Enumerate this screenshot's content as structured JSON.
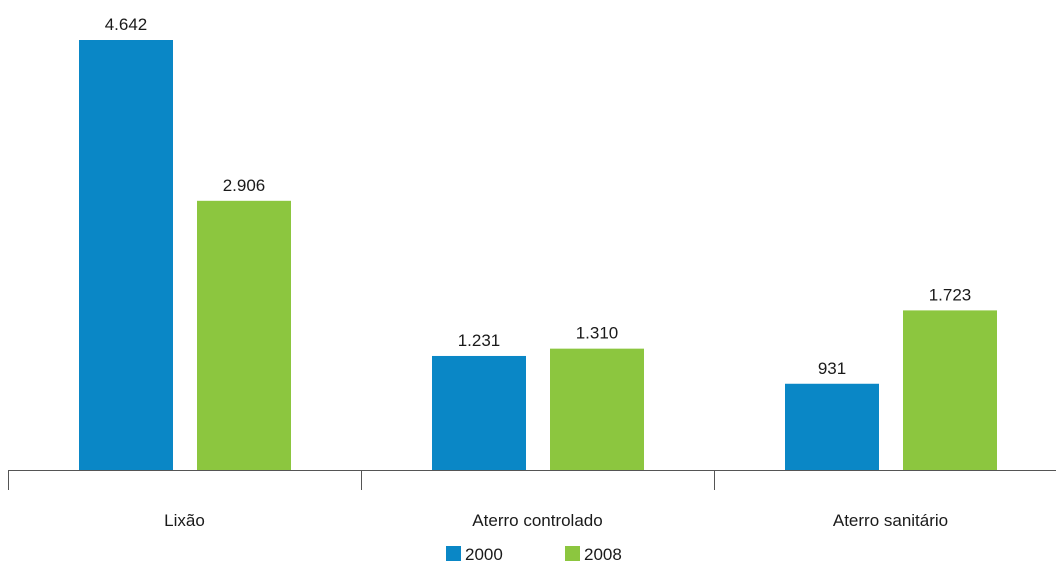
{
  "chart_data": {
    "type": "bar",
    "categories": [
      "Lixão",
      "Aterro controlado",
      "Aterro sanitário"
    ],
    "series": [
      {
        "name": "2000",
        "color": "#0a87c6",
        "values": [
          4642,
          1231,
          931
        ],
        "value_labels": [
          "4.642",
          "1.231",
          "931"
        ]
      },
      {
        "name": "2008",
        "color": "#8cc63f",
        "values": [
          2906,
          1310,
          1723
        ],
        "value_labels": [
          "2.906",
          "1.310",
          "1.723"
        ]
      }
    ],
    "title": "",
    "xlabel": "",
    "ylabel": "",
    "ylim": [
      0,
      4642
    ],
    "grid": false,
    "legend_position": "bottom-center"
  }
}
